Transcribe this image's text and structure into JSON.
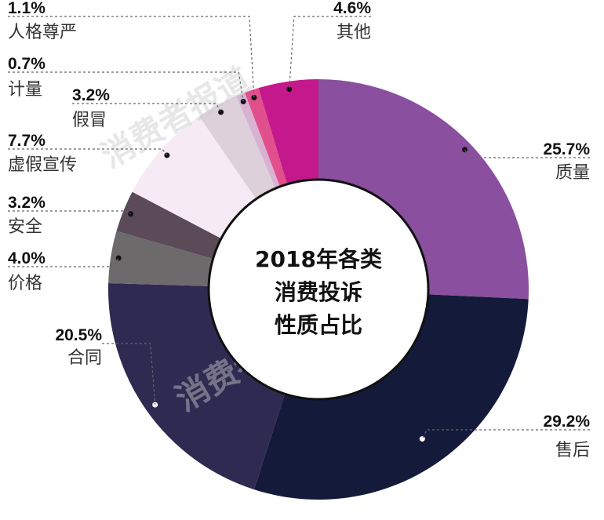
{
  "chart_data": {
    "type": "pie",
    "title": "2018年各类消费投诉性质占比",
    "title_lines": [
      "2018年各类",
      "消费投诉",
      "性质占比"
    ],
    "slices": [
      {
        "label": "质量",
        "value": 25.7,
        "value_label": "25.7%",
        "color": "#8a4f9e"
      },
      {
        "label": "售后",
        "value": 29.2,
        "value_label": "29.2%",
        "color": "#141a3a"
      },
      {
        "label": "合同",
        "value": 20.5,
        "value_label": "20.5%",
        "color": "#2f2a52"
      },
      {
        "label": "价格",
        "value": 4.0,
        "value_label": "4.0%",
        "color": "#6d6a6c"
      },
      {
        "label": "安全",
        "value": 3.2,
        "value_label": "3.2%",
        "color": "#5b4a57"
      },
      {
        "label": "虚假宣传",
        "value": 7.7,
        "value_label": "7.7%",
        "color": "#f6eaf5"
      },
      {
        "label": "假冒",
        "value": 3.2,
        "value_label": "3.2%",
        "color": "#ddd0da"
      },
      {
        "label": "计量",
        "value": 0.7,
        "value_label": "0.7%",
        "color": "#d9b2d3"
      },
      {
        "label": "人格尊严",
        "value": 1.1,
        "value_label": "1.1%",
        "color": "#e24f8d"
      },
      {
        "label": "其他",
        "value": 4.6,
        "value_label": "4.6%",
        "color": "#c4198c"
      }
    ],
    "watermark": "消费者报道"
  }
}
